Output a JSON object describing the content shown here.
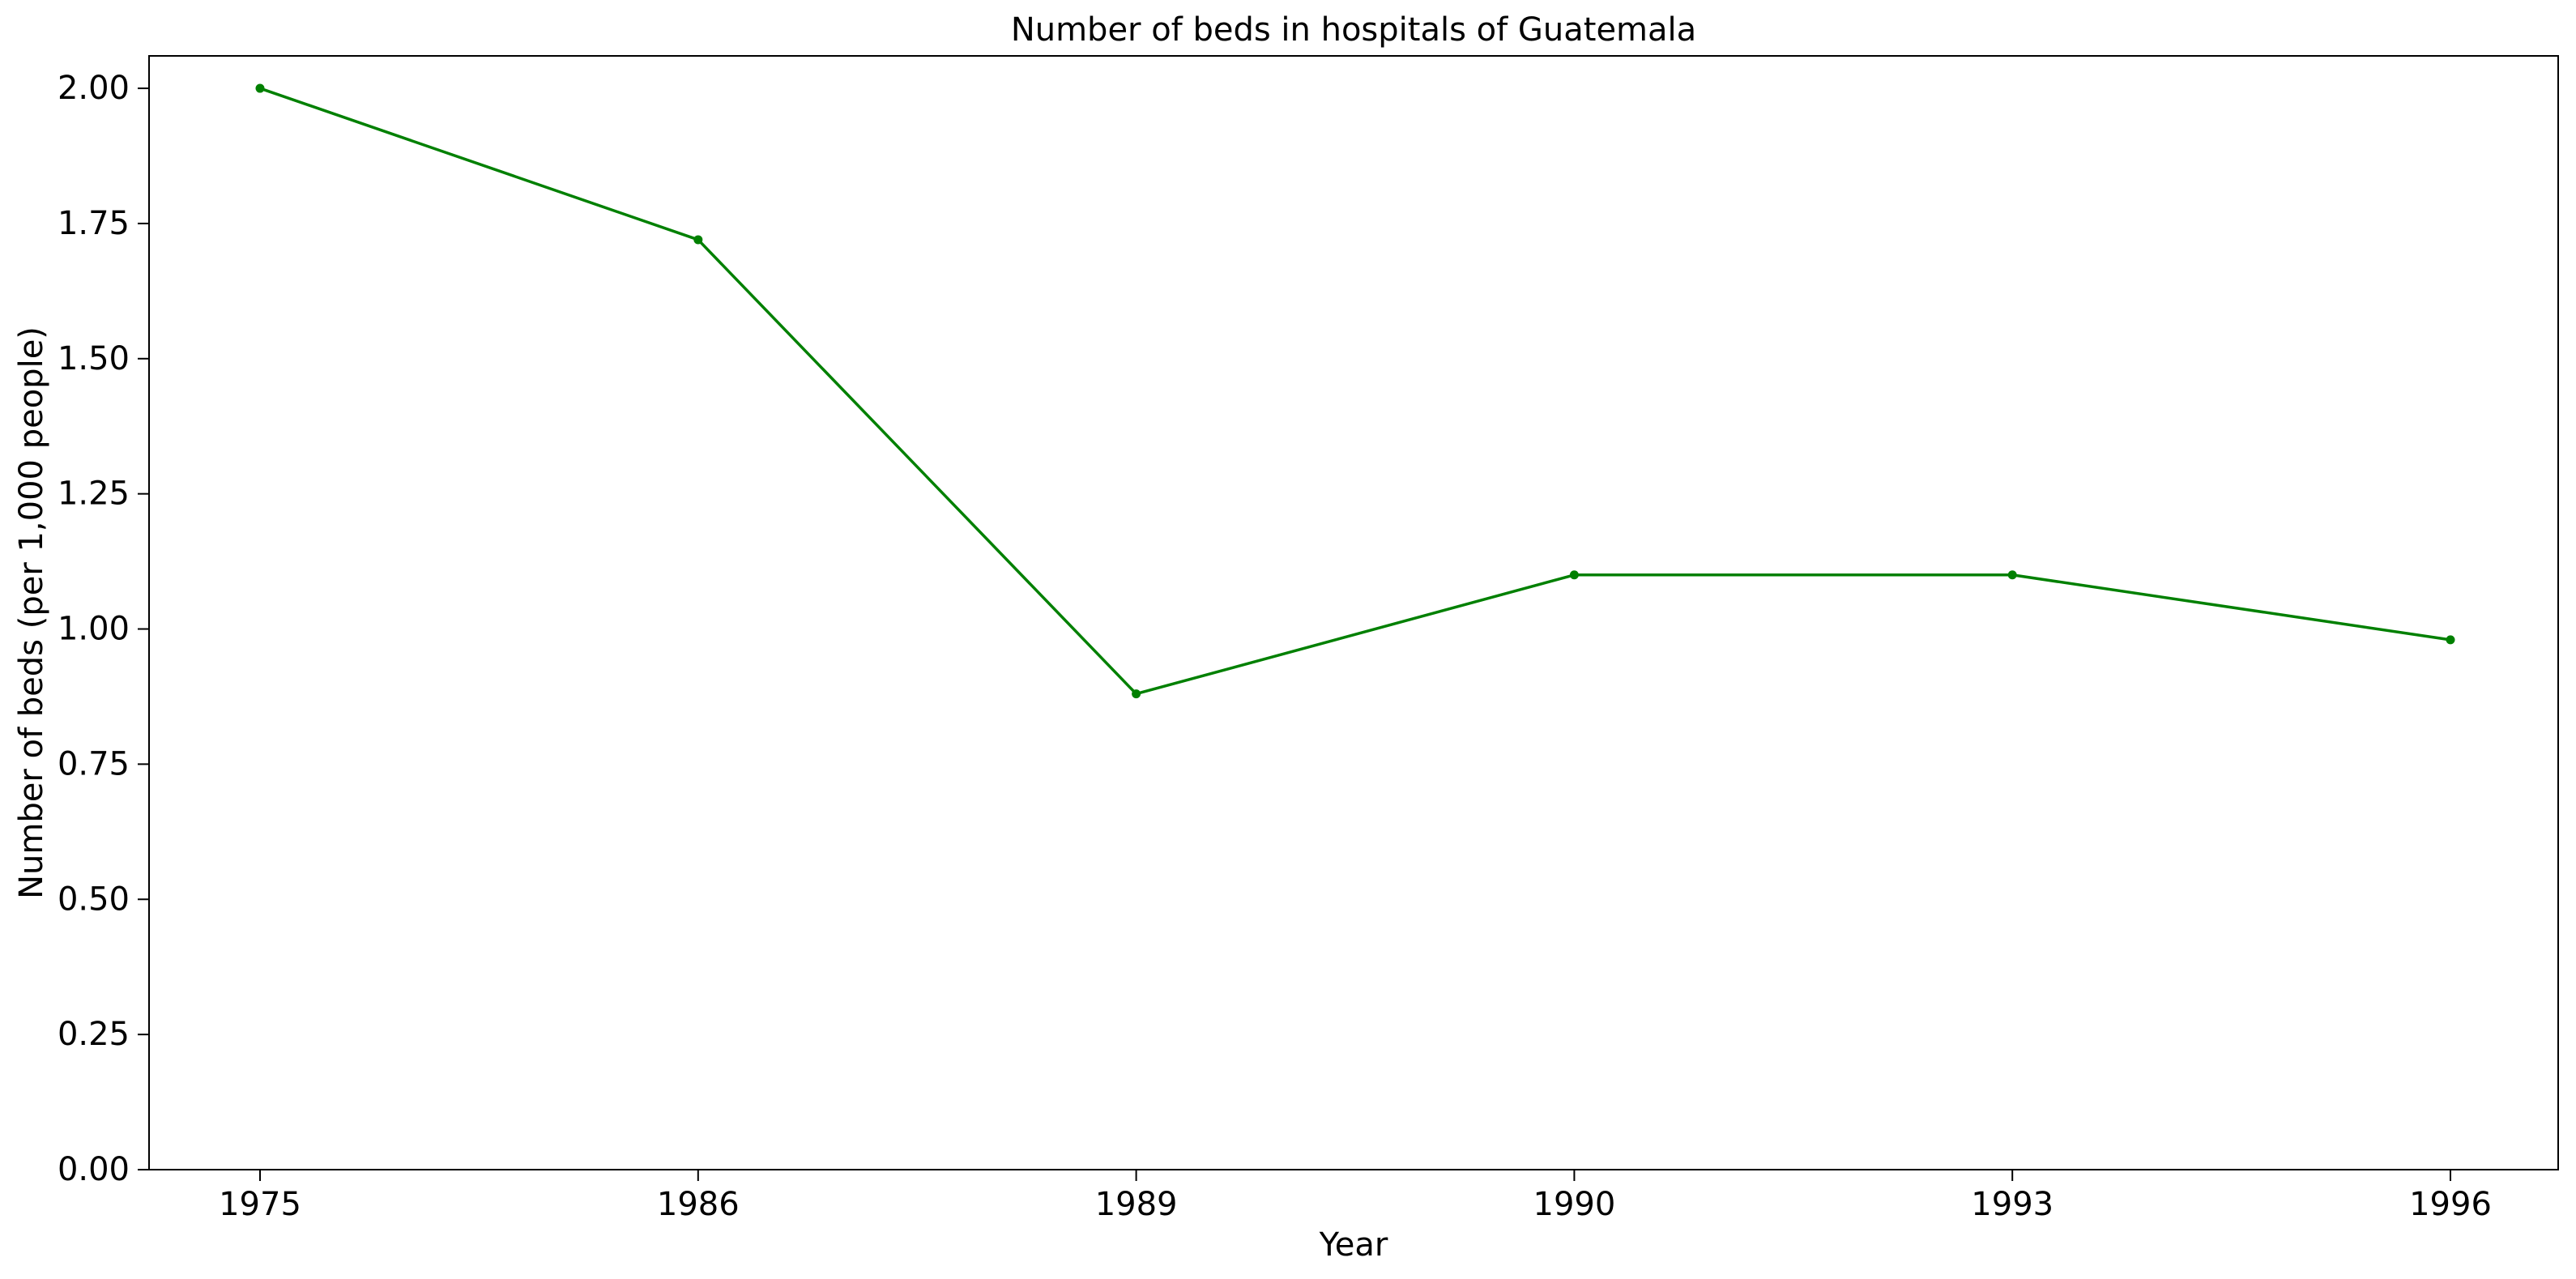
{
  "chart_data": {
    "type": "line",
    "title": "Number of beds in hospitals of Guatemala",
    "xlabel": "Year",
    "ylabel": "Number of beds (per 1,000 people)",
    "categories": [
      "1975",
      "1986",
      "1989",
      "1990",
      "1993",
      "1996"
    ],
    "series": [
      {
        "values": [
          2.0,
          1.72,
          0.88,
          1.1,
          1.1,
          0.98
        ]
      }
    ],
    "ylim": [
      0,
      2.06
    ],
    "yticks": [
      0.0,
      0.25,
      0.5,
      0.75,
      1.0,
      1.25,
      1.5,
      1.75,
      2.0
    ],
    "ytick_labels": [
      "0.00",
      "0.25",
      "0.50",
      "0.75",
      "1.00",
      "1.25",
      "1.50",
      "1.75",
      "2.00"
    ],
    "grid": false,
    "line_color": "#008000",
    "marker": "circle"
  }
}
